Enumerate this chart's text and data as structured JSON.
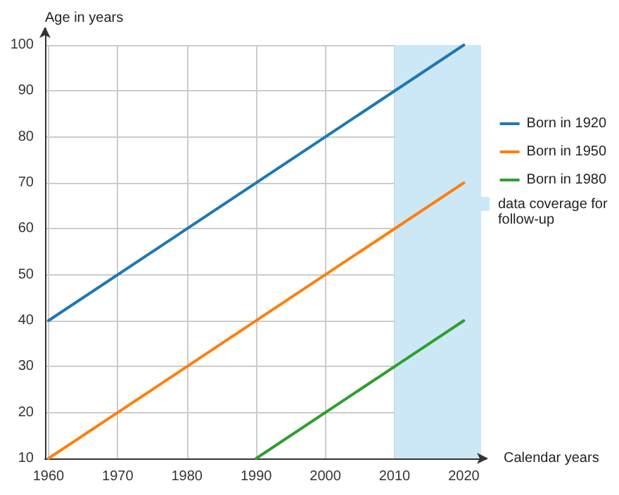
{
  "chart_data": {
    "type": "line",
    "xlabel": "Calendar years",
    "ylabel": "Age in years",
    "series": [
      {
        "name": "Born in 1920",
        "color": "#1f77b4",
        "x": [
          1960,
          2020
        ],
        "values": [
          40,
          100
        ]
      },
      {
        "name": "Born in 1950",
        "color": "#ff7f0e",
        "x": [
          1960,
          2020
        ],
        "values": [
          10,
          70
        ]
      },
      {
        "name": "Born in 1980",
        "color": "#2ca02c",
        "x": [
          1990,
          2020
        ],
        "values": [
          10,
          40
        ]
      }
    ],
    "xlim": [
      1959.5,
      2022.5
    ],
    "xticks": [
      1960,
      1970,
      1980,
      1990,
      2000,
      2010,
      2020
    ],
    "ylim": [
      10,
      100
    ],
    "yticks": [
      10,
      20,
      30,
      40,
      50,
      60,
      70,
      80,
      90,
      100
    ],
    "bands": [
      {
        "axis": "x",
        "from": 2010,
        "to": 2022.5,
        "label": "data coverage for follow-up",
        "color": "#cce8f6"
      }
    ],
    "grid": true,
    "legend": "right",
    "marker": "none",
    "line_style": "solid"
  }
}
